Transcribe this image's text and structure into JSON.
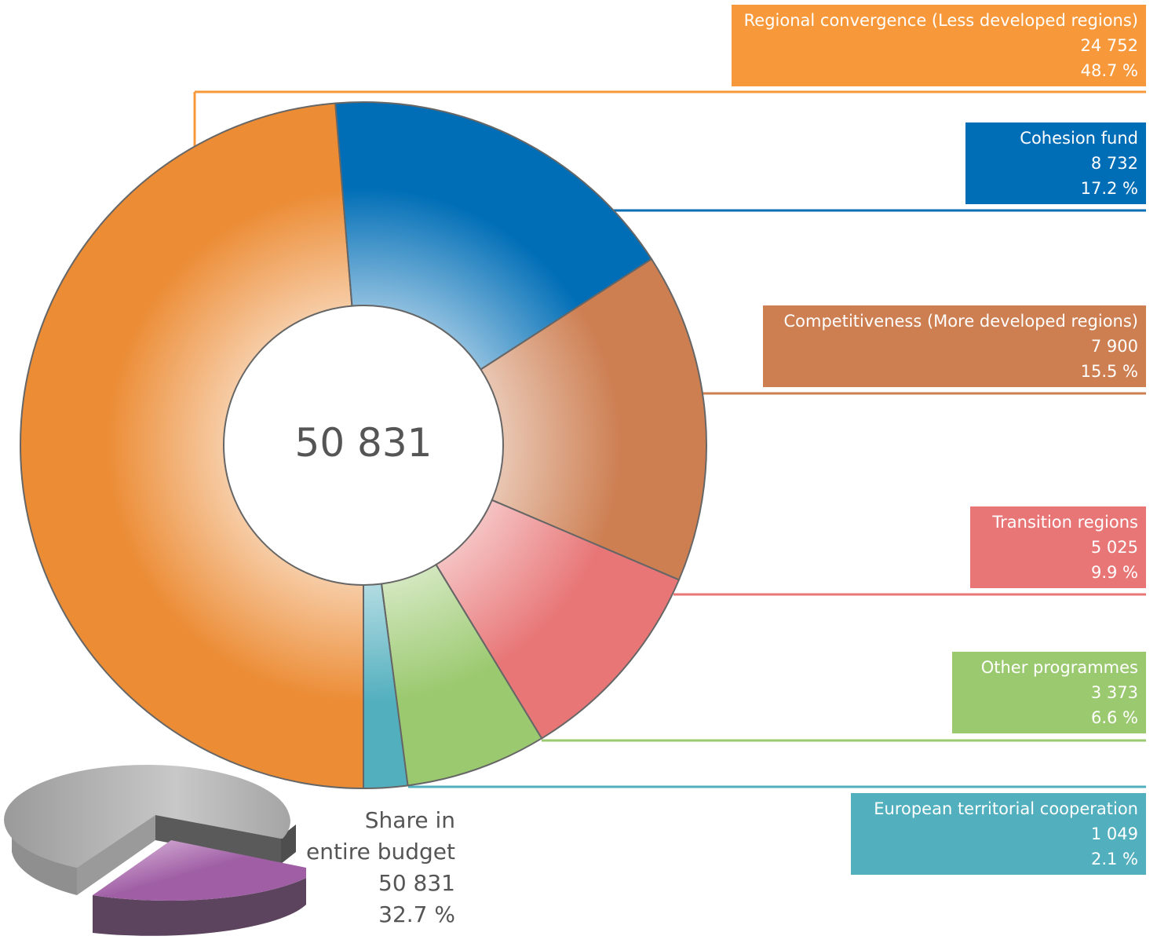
{
  "chart_data": {
    "type": "pie",
    "variant": "donut",
    "total_label": "50 831",
    "total": 50831,
    "slices": [
      {
        "name": "Regional convergence (Less developed regions)",
        "value": 24752,
        "value_label": "24 752",
        "percent": 48.7,
        "percent_label": "48.7 %",
        "color": "#EC8C35",
        "box_color": "#F7993A"
      },
      {
        "name": "Cohesion fund",
        "value": 8732,
        "value_label": "8 732",
        "percent": 17.2,
        "percent_label": "17.2 %",
        "color": "#006EB6",
        "box_color": "#006EB6"
      },
      {
        "name": "Competitiveness (More developed regions)",
        "value": 7900,
        "value_label": "7 900",
        "percent": 15.5,
        "percent_label": "15.5 %",
        "color": "#CD7F52",
        "box_color": "#CD7F52"
      },
      {
        "name": "Transition regions",
        "value": 5025,
        "value_label": "5 025",
        "percent": 9.9,
        "percent_label": "9.9 %",
        "color": "#E87677",
        "box_color": "#E87677"
      },
      {
        "name": "Other programmes",
        "value": 3373,
        "value_label": "3 373",
        "percent": 6.6,
        "percent_label": "6.6 %",
        "color": "#9BC96F",
        "box_color": "#9BC96F"
      },
      {
        "name": "European territorial cooperation",
        "value": 1049,
        "value_label": "1 049",
        "percent": 2.1,
        "percent_label": "2.1 %",
        "color": "#52AFBE",
        "box_color": "#52AFBE"
      }
    ],
    "share": {
      "line1": "Share in",
      "line2": "entire budget",
      "value_label": "50 831",
      "percent_label": "32.7 %",
      "percent": 32.7,
      "highlight_color": "#A05FA5",
      "rest_color": "#AAAAAA"
    }
  }
}
